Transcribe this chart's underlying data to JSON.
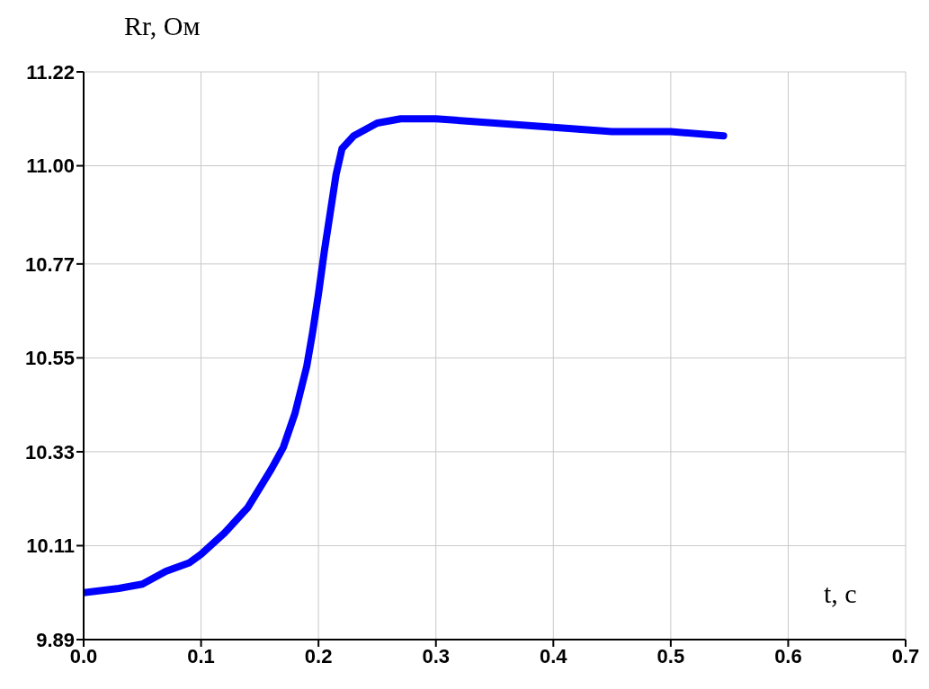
{
  "chart_data": {
    "type": "line",
    "xlabel": "t, c",
    "ylabel": "Rr, Ом",
    "x": [
      0,
      0.03,
      0.05,
      0.07,
      0.09,
      0.1,
      0.12,
      0.14,
      0.16,
      0.17,
      0.18,
      0.19,
      0.195,
      0.2,
      0.205,
      0.21,
      0.215,
      0.22,
      0.23,
      0.25,
      0.27,
      0.3,
      0.35,
      0.4,
      0.45,
      0.5,
      0.545
    ],
    "series": [
      {
        "color": "#0000ff",
        "values": [
          10.0,
          10.01,
          10.02,
          10.05,
          10.07,
          10.09,
          10.14,
          10.2,
          10.29,
          10.34,
          10.42,
          10.53,
          10.61,
          10.7,
          10.8,
          10.89,
          10.98,
          11.04,
          11.07,
          11.1,
          11.11,
          11.11,
          11.1,
          11.09,
          11.08,
          11.08,
          11.07
        ]
      }
    ],
    "xlim": [
      0,
      0.7
    ],
    "xticks": [
      {
        "value": 0,
        "label": "0.0"
      },
      0.1,
      0.2,
      0.3,
      0.4,
      0.5,
      0.6,
      0.7
    ],
    "ylim": [
      9.89,
      11.22
    ],
    "yticks": [
      9.89,
      10.11,
      10.33,
      10.55,
      10.77,
      {
        "value": 11,
        "label": "11.00"
      },
      11.22
    ],
    "grid": true,
    "marker": "none",
    "line_style": "solid"
  }
}
